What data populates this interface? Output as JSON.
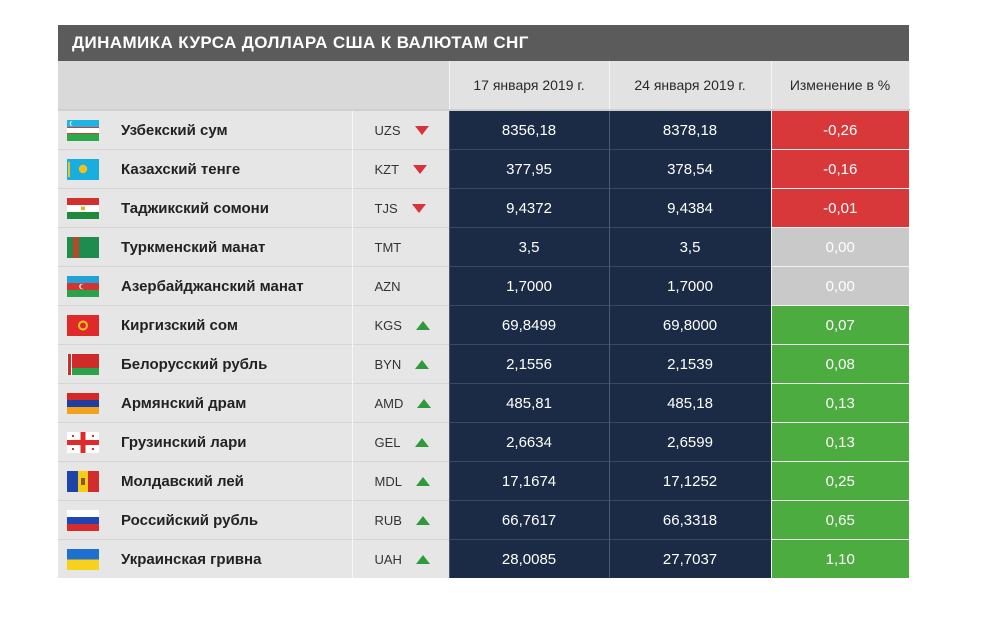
{
  "title": "ДИНАМИКА КУРСА ДОЛЛАРА США К ВАЛЮТАМ СНГ",
  "colors": {
    "negative": "#d9383a",
    "neutral": "#c9c9c9",
    "positive": "#4cac3f",
    "value_bg": "#1c2b45"
  },
  "chart_data": {
    "type": "table",
    "title": "ДИНАМИКА КУРСА ДОЛЛАРА США К ВАЛЮТАМ СНГ",
    "columns": [
      "17 января 2019 г.",
      "24 января 2019 г.",
      "Изменение в %"
    ],
    "rows": [
      {
        "name": "Узбекский сум",
        "code": "UZS",
        "trend": "down",
        "v1": "8356,18",
        "v2": "8378,18",
        "change": "-0,26",
        "change_value": -0.26,
        "flag": "uzbekistan-flag-icon"
      },
      {
        "name": "Казахский тенге",
        "code": "KZT",
        "trend": "down",
        "v1": "377,95",
        "v2": "378,54",
        "change": "-0,16",
        "change_value": -0.16,
        "flag": "kazakhstan-flag-icon"
      },
      {
        "name": "Таджикский сомони",
        "code": "TJS",
        "trend": "down",
        "v1": "9,4372",
        "v2": "9,4384",
        "change": "-0,01",
        "change_value": -0.01,
        "flag": "tajikistan-flag-icon"
      },
      {
        "name": "Туркменский манат",
        "code": "TMT",
        "trend": "none",
        "v1": "3,5",
        "v2": "3,5",
        "change": "0,00",
        "change_value": 0,
        "flag": "turkmenistan-flag-icon"
      },
      {
        "name": "Азербайджанский манат",
        "code": "AZN",
        "trend": "none",
        "v1": "1,7000",
        "v2": "1,7000",
        "change": "0,00",
        "change_value": 0,
        "flag": "azerbaijan-flag-icon"
      },
      {
        "name": "Киргизский сом",
        "code": "KGS",
        "trend": "up",
        "v1": "69,8499",
        "v2": "69,8000",
        "change": "0,07",
        "change_value": 0.07,
        "flag": "kyrgyzstan-flag-icon"
      },
      {
        "name": "Белорусский рубль",
        "code": "BYN",
        "trend": "up",
        "v1": "2,1556",
        "v2": "2,1539",
        "change": "0,08",
        "change_value": 0.08,
        "flag": "belarus-flag-icon"
      },
      {
        "name": "Армянский драм",
        "code": "AMD",
        "trend": "up",
        "v1": "485,81",
        "v2": "485,18",
        "change": "0,13",
        "change_value": 0.13,
        "flag": "armenia-flag-icon"
      },
      {
        "name": "Грузинский лари",
        "code": "GEL",
        "trend": "up",
        "v1": "2,6634",
        "v2": "2,6599",
        "change": "0,13",
        "change_value": 0.13,
        "flag": "georgia-flag-icon"
      },
      {
        "name": "Молдавский лей",
        "code": "MDL",
        "trend": "up",
        "v1": "17,1674",
        "v2": "17,1252",
        "change": "0,25",
        "change_value": 0.25,
        "flag": "moldova-flag-icon"
      },
      {
        "name": "Российский рубль",
        "code": "RUB",
        "trend": "up",
        "v1": "66,7617",
        "v2": "66,3318",
        "change": "0,65",
        "change_value": 0.65,
        "flag": "russia-flag-icon"
      },
      {
        "name": "Украинская гривна",
        "code": "UAH",
        "trend": "up",
        "v1": "28,0085",
        "v2": "27,7037",
        "change": "1,10",
        "change_value": 1.1,
        "flag": "ukraine-flag-icon"
      }
    ]
  }
}
